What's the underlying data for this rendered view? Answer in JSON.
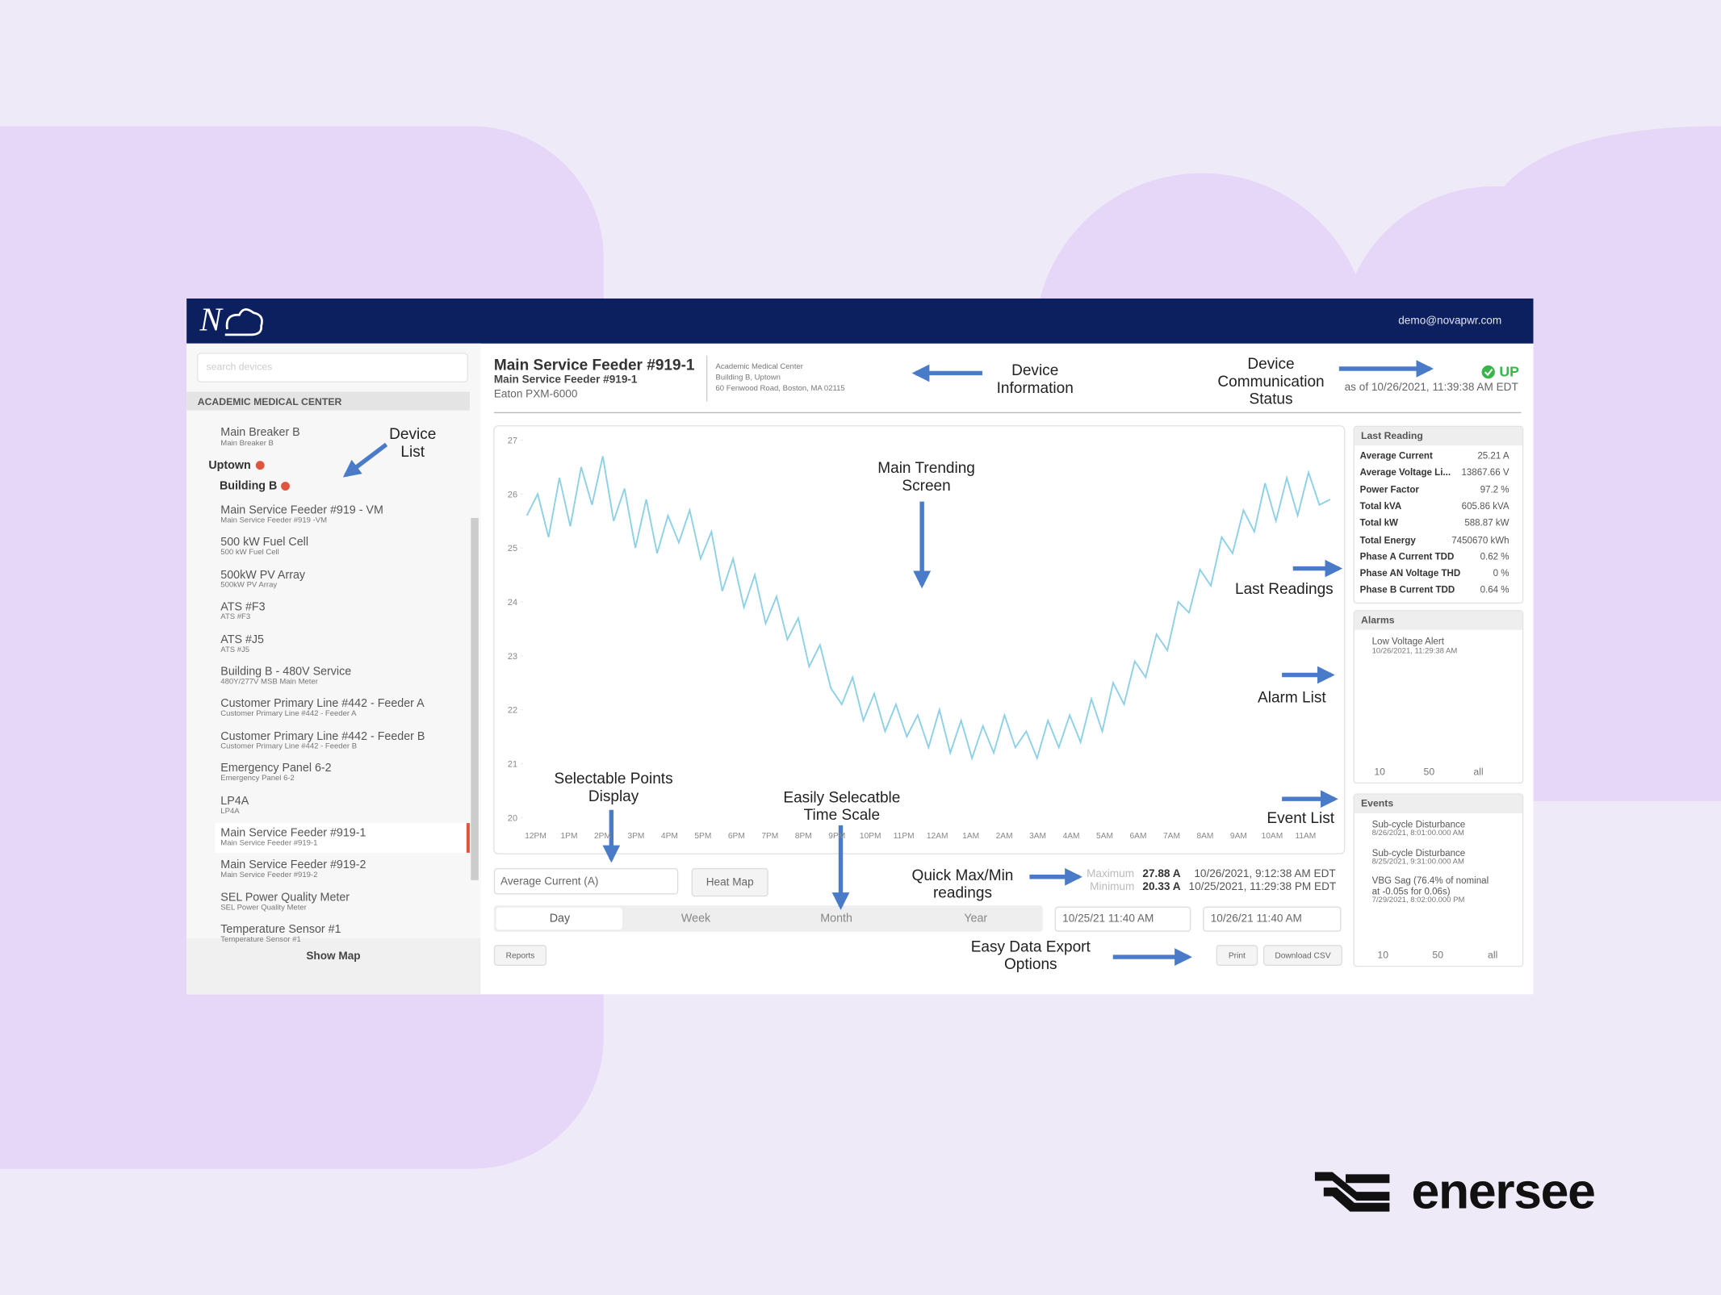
{
  "brand": "enersee",
  "app": {
    "logo": "N",
    "user": "demo@novapwr.com",
    "sidebar": {
      "search_placeholder": "search devices",
      "group": "ACADEMIC MEDICAL CENTER",
      "top_item": {
        "name": "Main Breaker B",
        "sub": "Main Breaker B"
      },
      "site": "Uptown",
      "building": "Building B",
      "items": [
        {
          "name": "Main Service Feeder #919 - VM",
          "sub": "Main Service Feeder #919 -VM"
        },
        {
          "name": "500 kW Fuel Cell",
          "sub": "500 kW Fuel Cell"
        },
        {
          "name": "500kW PV Array",
          "sub": "500kW PV Array"
        },
        {
          "name": "ATS #F3",
          "sub": "ATS #F3"
        },
        {
          "name": "ATS #J5",
          "sub": "ATS #J5"
        },
        {
          "name": "Building B - 480V Service",
          "sub": "480Y/277V MSB Main Meter"
        },
        {
          "name": "Customer Primary Line #442 - Feeder A",
          "sub": "Customer Primary Line #442 - Feeder A"
        },
        {
          "name": "Customer Primary Line #442 - Feeder B",
          "sub": "Customer Primary Line #442 - Feeder B"
        },
        {
          "name": "Emergency Panel 6-2",
          "sub": "Emergency Panel 6-2"
        },
        {
          "name": "LP4A",
          "sub": "LP4A"
        },
        {
          "name": "Main Service Feeder #919-1",
          "sub": "Main Service Feeder #919-1"
        },
        {
          "name": "Main Service Feeder #919-2",
          "sub": "Main Service Feeder #919-2"
        },
        {
          "name": "SEL Power Quality Meter",
          "sub": "SEL Power Quality Meter"
        },
        {
          "name": "Temperature Sensor #1",
          "sub": "Temperature Sensor #1"
        }
      ],
      "show_map": "Show Map"
    },
    "device": {
      "title": "Main Service Feeder #919-1",
      "subtitle": "Main Service Feeder #919-1",
      "model": "Eaton PXM-6000",
      "location": [
        "Academic Medical Center",
        "Building B, Uptown",
        "60 Fenwood Road, Boston, MA 02115"
      ]
    },
    "status": {
      "label": "UP",
      "as_of": "as of 10/26/2021, 11:39:38 AM EDT"
    },
    "trend": {
      "ylim": [
        20,
        27
      ],
      "yticks": [
        20,
        21,
        22,
        23,
        24,
        25,
        26,
        27
      ],
      "xticks": [
        "12PM",
        "1PM",
        "2PM",
        "3PM",
        "4PM",
        "5PM",
        "6PM",
        "7PM",
        "8PM",
        "9PM",
        "10PM",
        "11PM",
        "12AM",
        "1AM",
        "2AM",
        "3AM",
        "4AM",
        "5AM",
        "6AM",
        "7AM",
        "8AM",
        "9AM",
        "10AM",
        "11AM"
      ],
      "color": "#8ed0e6",
      "values": [
        25.6,
        26.0,
        25.2,
        26.3,
        25.4,
        26.5,
        25.8,
        26.7,
        25.5,
        26.1,
        25.0,
        25.9,
        24.9,
        25.6,
        25.1,
        25.7,
        24.8,
        25.3,
        24.2,
        24.8,
        23.9,
        24.5,
        23.6,
        24.1,
        23.3,
        23.7,
        22.8,
        23.2,
        22.4,
        22.1,
        22.6,
        21.8,
        22.3,
        21.6,
        22.1,
        21.5,
        21.9,
        21.3,
        22.0,
        21.2,
        21.8,
        21.1,
        21.7,
        21.2,
        21.9,
        21.3,
        21.6,
        21.1,
        21.8,
        21.3,
        21.9,
        21.4,
        22.2,
        21.6,
        22.5,
        22.1,
        22.9,
        22.6,
        23.4,
        23.1,
        24.0,
        23.8,
        24.6,
        24.3,
        25.2,
        24.9,
        25.7,
        25.3,
        26.2,
        25.5,
        26.3,
        25.6,
        26.4,
        25.8,
        25.9
      ]
    },
    "controls": {
      "point_select": "Average Current (A)",
      "heat_map": "Heat Map",
      "tabs": [
        "Day",
        "Week",
        "Month",
        "Year"
      ],
      "maximum": {
        "label": "Maximum",
        "value": "27.88 A",
        "time": "10/26/2021, 9:12:38 AM EDT"
      },
      "minimum": {
        "label": "Minimum",
        "value": "20.33 A",
        "time": "10/25/2021, 11:29:38 PM EDT"
      },
      "start": "10/25/21 11:40 AM",
      "end": "10/26/21 11:40 AM",
      "reports": "Reports",
      "print": "Print",
      "download": "Download CSV"
    },
    "last_reading": {
      "title": "Last Reading",
      "rows": [
        [
          "Average Current",
          "25.21 A"
        ],
        [
          "Average Voltage Li...",
          "13867.66 V"
        ],
        [
          "Power Factor",
          "97.2 %"
        ],
        [
          "Total kVA",
          "605.86 kVA"
        ],
        [
          "Total kW",
          "588.87 kW"
        ],
        [
          "Total Energy",
          "7450670 kWh"
        ],
        [
          "Phase A Current TDD",
          "0.62 %"
        ],
        [
          "Phase AN Voltage THD",
          "0 %"
        ],
        [
          "Phase B Current TDD",
          "0.64 %"
        ]
      ]
    },
    "alarms": {
      "title": "Alarms",
      "items": [
        {
          "name": "Low Voltage Alert",
          "time": "10/26/2021, 11:29:38 AM"
        }
      ],
      "pager": [
        "10",
        "50",
        "all"
      ]
    },
    "events": {
      "title": "Events",
      "items": [
        {
          "name": "Sub-cycle Disturbance",
          "time": "8/26/2021, 8:01:00.000 AM"
        },
        {
          "name": "Sub-cycle Disturbance",
          "time": "8/25/2021, 9:31:00.000 AM"
        },
        {
          "name": "VBG Sag (76.4% of nominal at -0.05s for 0.06s)",
          "time": "7/29/2021, 8:02:00.000 PM"
        }
      ],
      "pager": [
        "10",
        "50",
        "all"
      ]
    }
  },
  "annotations": [
    "Device\nInformation",
    "Device\nCommunication\nStatus",
    "Device\nList",
    "Main Trending\nScreen",
    "Last Readings",
    "Alarm List",
    "Event List",
    "Selectable Points\nDisplay",
    "Easily Selecatble\nTime  Scale",
    "Quick Max/Min\nreadings",
    "Easy Data Export\nOptions"
  ]
}
